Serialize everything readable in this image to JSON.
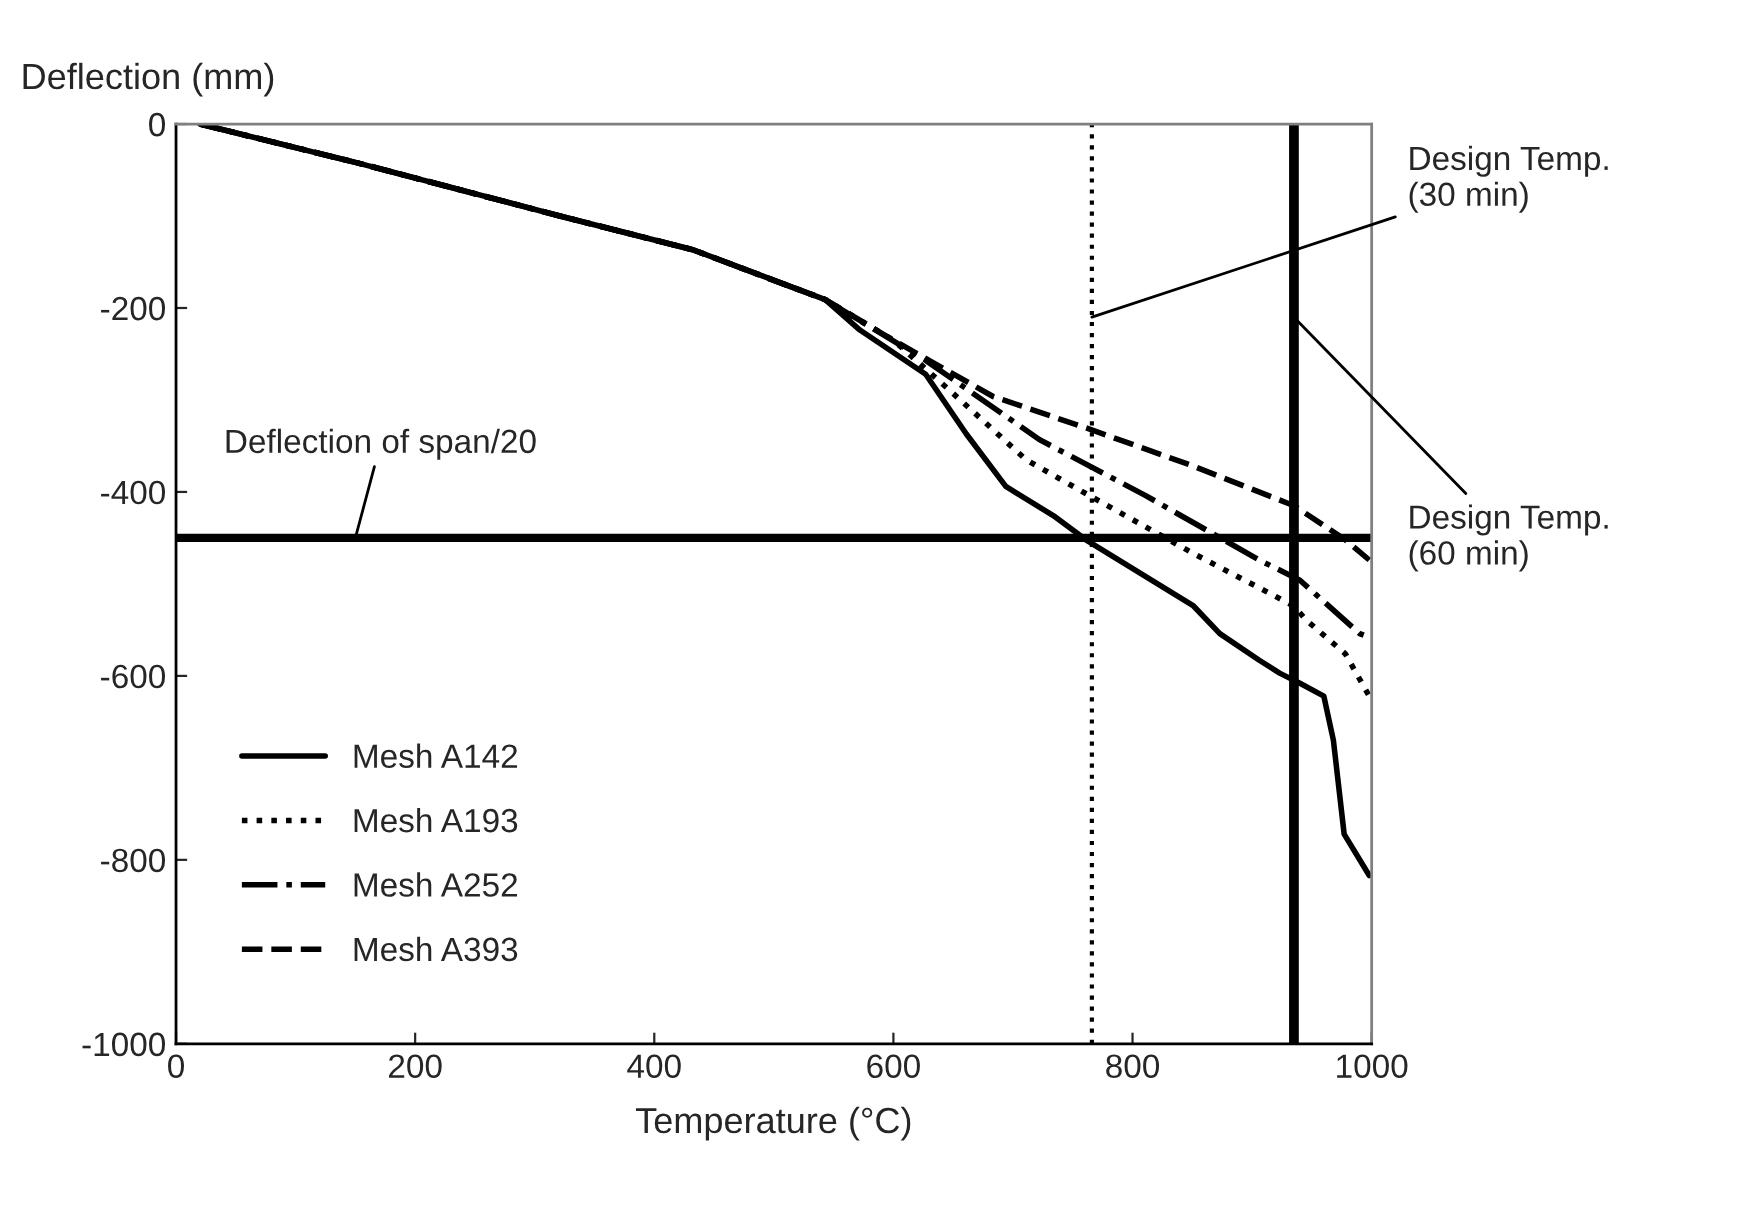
{
  "chart_data": {
    "type": "line",
    "xlabel": "Temperature (°C)",
    "ylabel": "Deflection (mm)",
    "xlim": [
      0,
      1000
    ],
    "xticks": [
      0,
      200,
      400,
      600,
      800,
      1000
    ],
    "ylim": [
      -1000,
      0
    ],
    "yticks": [
      -1000,
      -800,
      -600,
      -400,
      -200,
      0
    ],
    "grid": false,
    "legend": "bottom left",
    "marker": "none",
    "series": [
      {
        "name": "Mesh A142",
        "color": "#000000",
        "line_style": "solid",
        "x": [
          20,
          154,
          321,
          433,
          543,
          572,
          627,
          661,
          694,
          734,
          761,
          851,
          873,
          906,
          923,
          940,
          960,
          968,
          977,
          998
        ],
        "values": [
          0,
          -43,
          -100,
          -137,
          -191,
          -224,
          -272,
          -337,
          -394,
          -426,
          -452,
          -524,
          -554,
          -583,
          -597,
          -608,
          -622,
          -670,
          -772,
          -817
        ]
      },
      {
        "name": "Mesh A193",
        "color": "#000000",
        "line_style": "dotted",
        "x": [
          20,
          154,
          321,
          433,
          543,
          600,
          650,
          711,
          764,
          851,
          935,
          945,
          978,
          998
        ],
        "values": [
          0,
          -43,
          -100,
          -137,
          -191,
          -235,
          -293,
          -365,
          -404,
          -467,
          -524,
          -539,
          -576,
          -622
        ]
      },
      {
        "name": "Mesh A252",
        "color": "#000000",
        "line_style": "dashdot",
        "x": [
          20,
          154,
          321,
          433,
          543,
          627,
          722,
          811,
          906,
          940,
          990,
          998
        ],
        "values": [
          0,
          -43,
          -100,
          -137,
          -191,
          -257,
          -343,
          -404,
          -474,
          -496,
          -554,
          -558
        ]
      },
      {
        "name": "Mesh A393",
        "color": "#000000",
        "line_style": "dashed",
        "x": [
          20,
          154,
          321,
          433,
          543,
          600,
          683,
          767,
          851,
          935,
          978,
          998
        ],
        "values": [
          0,
          -43,
          -100,
          -137,
          -191,
          -235,
          -296,
          -333,
          -372,
          -415,
          -452,
          -474
        ]
      }
    ],
    "ref_lines": [
      {
        "axis": "y",
        "value": -450,
        "label": "Deflection of span/20",
        "color": "#000000",
        "line_style": "solid"
      },
      {
        "axis": "x",
        "value": 766,
        "label": "Design Temp.\n(30 min)",
        "color": "#000000",
        "line_style": "dotted"
      },
      {
        "axis": "x",
        "value": 935,
        "label": "Design Temp.\n(60 min)",
        "color": "#000000",
        "line_style": "solid"
      }
    ]
  }
}
